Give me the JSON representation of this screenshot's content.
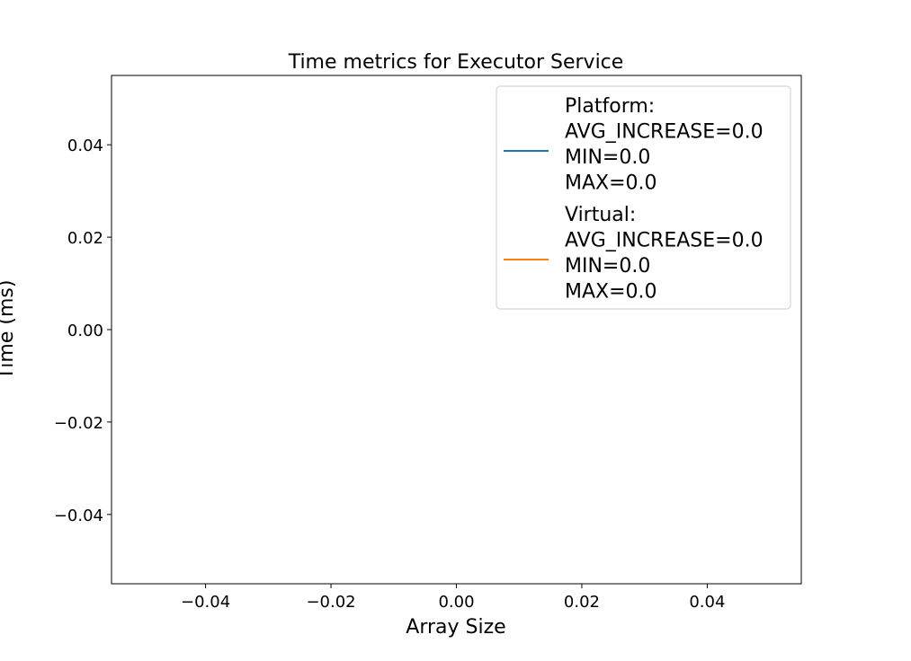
{
  "chart_data": {
    "type": "line",
    "title": "Time metrics for Executor Service",
    "xlabel": "Array Size",
    "ylabel": "Time (ms)",
    "xlim": [
      -0.055,
      0.055
    ],
    "ylim": [
      -0.055,
      0.055
    ],
    "x_ticks": [
      "−0.04",
      "−0.02",
      "0.00",
      "0.02",
      "0.04"
    ],
    "x_tick_values": [
      -0.04,
      -0.02,
      0.0,
      0.02,
      0.04
    ],
    "y_ticks": [
      "0.04",
      "0.02",
      "0.00",
      "−0.02",
      "−0.04"
    ],
    "y_tick_values": [
      0.04,
      0.02,
      0.0,
      -0.02,
      -0.04
    ],
    "grid": false,
    "legend_position": "top-right",
    "series": [
      {
        "name_lines": [
          "Platform:",
          "AVG_INCREASE=0.0",
          "MIN=0.0",
          "MAX=0.0"
        ],
        "color": "#1f77b4",
        "x": [],
        "y": []
      },
      {
        "name_lines": [
          "Virtual:",
          "AVG_INCREASE=0.0",
          "MIN=0.0",
          "MAX=0.0"
        ],
        "color": "#ff7f0e",
        "x": [],
        "y": []
      }
    ]
  }
}
